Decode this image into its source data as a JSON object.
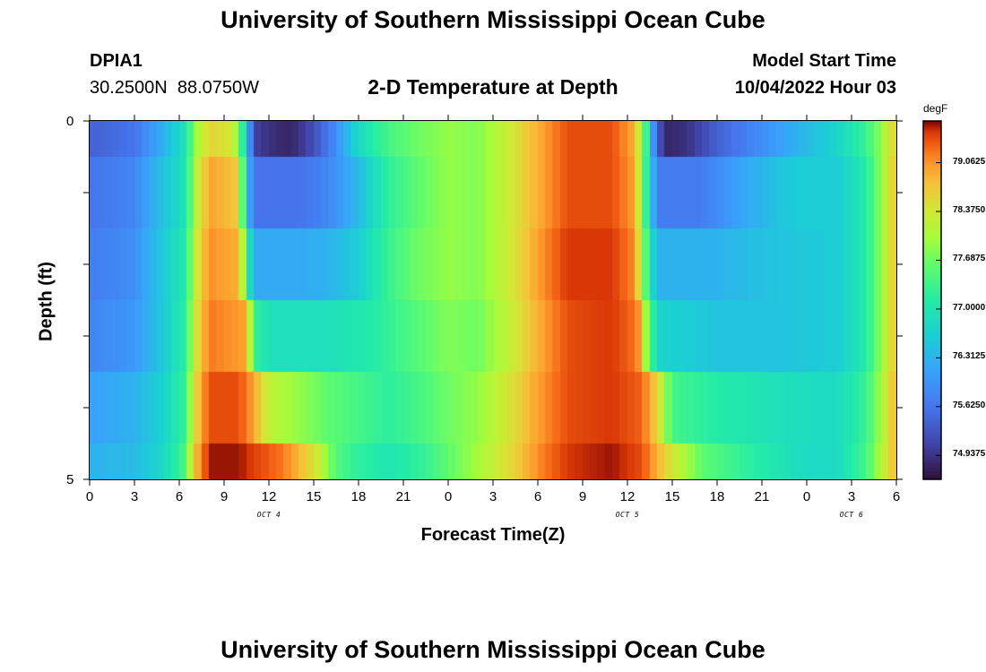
{
  "page": {
    "title": "University of Southern Mississippi Ocean Cube",
    "title_repeat": "University of Southern Mississippi Ocean Cube"
  },
  "station": {
    "id": "DPIA1",
    "coords": "30.2500N  88.0750W"
  },
  "model": {
    "label": "Model Start Time",
    "time": "10/04/2022 Hour 03"
  },
  "chart_data": {
    "type": "heatmap",
    "title": "2-D Temperature at Depth",
    "xlabel": "Forecast Time(Z)",
    "ylabel": "Depth (ft)",
    "units": "degF",
    "x_tick_labels": [
      "0",
      "3",
      "6",
      "9",
      "12",
      "15",
      "18",
      "21",
      "0",
      "3",
      "6",
      "9",
      "12",
      "15",
      "18",
      "21",
      "0",
      "3",
      "6"
    ],
    "day_labels": [
      {
        "label": "OCT 4",
        "hour": 12
      },
      {
        "label": "OCT 5",
        "hour": 36
      },
      {
        "label": "OCT 6",
        "hour": 51
      }
    ],
    "x_range_hours": [
      0,
      54
    ],
    "y_tick_labels": [
      "0",
      "5"
    ],
    "ylim": [
      0,
      5
    ],
    "depth_rows": [
      "0-0.5",
      "0.5-1.5",
      "1.5-2.5",
      "2.5-3.5",
      "3.5-4.5",
      "4.5-5"
    ],
    "colorbar": {
      "label": "degF",
      "ticks": [
        "79.0625",
        "78.3750",
        "77.6875",
        "77.0000",
        "76.3125",
        "75.6250",
        "74.9375"
      ],
      "range": [
        74.6,
        79.65
      ]
    },
    "temperature_keypoints_by_row": [
      [
        [
          0,
          75.4
        ],
        [
          3,
          75.6
        ],
        [
          5,
          76.3
        ],
        [
          6.5,
          77.0
        ],
        [
          7,
          77.8
        ],
        [
          8,
          78.6
        ],
        [
          9.5,
          78.4
        ],
        [
          10,
          77.8
        ],
        [
          10.5,
          76.6
        ],
        [
          11,
          75.1
        ],
        [
          12,
          74.9
        ],
        [
          13.5,
          74.8
        ],
        [
          15,
          75.2
        ],
        [
          16.5,
          75.9
        ],
        [
          18,
          76.8
        ],
        [
          20,
          77.4
        ],
        [
          22,
          77.7
        ],
        [
          24,
          77.9
        ],
        [
          26,
          77.8
        ],
        [
          28,
          78.3
        ],
        [
          30,
          78.9
        ],
        [
          32,
          79.4
        ],
        [
          35,
          79.4
        ],
        [
          36.5,
          78.9
        ],
        [
          37.2,
          77.5
        ],
        [
          37.8,
          75.8
        ],
        [
          38.5,
          74.8
        ],
        [
          40,
          74.9
        ],
        [
          42,
          75.4
        ],
        [
          45,
          75.9
        ],
        [
          48,
          76.4
        ],
        [
          50,
          76.7
        ],
        [
          52,
          77.3
        ],
        [
          53,
          77.9
        ],
        [
          54,
          78.7
        ]
      ],
      [
        [
          0,
          75.6
        ],
        [
          3,
          75.8
        ],
        [
          5,
          76.5
        ],
        [
          6.5,
          77.0
        ],
        [
          7,
          78.0
        ],
        [
          8,
          79.0
        ],
        [
          10,
          78.7
        ],
        [
          10.5,
          76.5
        ],
        [
          11,
          75.6
        ],
        [
          14,
          75.6
        ],
        [
          16,
          75.8
        ],
        [
          18,
          76.4
        ],
        [
          20,
          77.2
        ],
        [
          22,
          77.6
        ],
        [
          24,
          77.9
        ],
        [
          26,
          77.8
        ],
        [
          28,
          78.3
        ],
        [
          30,
          78.9
        ],
        [
          32,
          79.4
        ],
        [
          35,
          79.4
        ],
        [
          36.5,
          79.0
        ],
        [
          37.5,
          76.7
        ],
        [
          38,
          75.7
        ],
        [
          41,
          75.7
        ],
        [
          44,
          76.2
        ],
        [
          47,
          76.6
        ],
        [
          50,
          76.6
        ],
        [
          52,
          77.1
        ],
        [
          53,
          77.9
        ],
        [
          54,
          78.8
        ]
      ],
      [
        [
          0,
          75.7
        ],
        [
          3,
          75.9
        ],
        [
          5,
          76.6
        ],
        [
          6.5,
          77.1
        ],
        [
          7,
          78.2
        ],
        [
          8,
          79.1
        ],
        [
          10,
          78.9
        ],
        [
          10.7,
          76.9
        ],
        [
          11,
          76.2
        ],
        [
          14,
          76.2
        ],
        [
          16,
          76.3
        ],
        [
          18,
          76.6
        ],
        [
          20,
          77.3
        ],
        [
          22,
          77.7
        ],
        [
          24,
          77.9
        ],
        [
          26,
          77.8
        ],
        [
          28,
          78.3
        ],
        [
          30,
          79.0
        ],
        [
          32,
          79.5
        ],
        [
          35,
          79.5
        ],
        [
          36.5,
          79.1
        ],
        [
          37.5,
          77.0
        ],
        [
          38,
          76.3
        ],
        [
          42,
          76.3
        ],
        [
          46,
          76.5
        ],
        [
          50,
          76.6
        ],
        [
          52,
          77.1
        ],
        [
          53,
          77.9
        ],
        [
          54,
          78.8
        ]
      ],
      [
        [
          0,
          75.8
        ],
        [
          3,
          76.0
        ],
        [
          5,
          76.6
        ],
        [
          6.5,
          77.2
        ],
        [
          7,
          78.3
        ],
        [
          8,
          79.2
        ],
        [
          10.5,
          79.0
        ],
        [
          11,
          77.3
        ],
        [
          12,
          76.9
        ],
        [
          16,
          76.9
        ],
        [
          19,
          77.1
        ],
        [
          21,
          77.4
        ],
        [
          24,
          77.8
        ],
        [
          26,
          77.7
        ],
        [
          28,
          78.2
        ],
        [
          30,
          78.9
        ],
        [
          32,
          79.4
        ],
        [
          35,
          79.5
        ],
        [
          36.7,
          79.2
        ],
        [
          37.5,
          77.4
        ],
        [
          38.2,
          76.7
        ],
        [
          42,
          76.5
        ],
        [
          46,
          76.5
        ],
        [
          50,
          76.6
        ],
        [
          52,
          77.1
        ],
        [
          53,
          77.9
        ],
        [
          54,
          78.8
        ]
      ],
      [
        [
          0,
          76.1
        ],
        [
          3,
          76.3
        ],
        [
          5,
          76.7
        ],
        [
          6.5,
          77.3
        ],
        [
          7,
          78.5
        ],
        [
          8,
          79.4
        ],
        [
          10,
          79.4
        ],
        [
          11,
          79.0
        ],
        [
          12,
          78.2
        ],
        [
          14,
          77.9
        ],
        [
          16,
          77.6
        ],
        [
          18,
          77.4
        ],
        [
          20,
          77.2
        ],
        [
          22,
          77.4
        ],
        [
          24,
          77.7
        ],
        [
          26,
          77.9
        ],
        [
          28,
          78.4
        ],
        [
          30,
          79.0
        ],
        [
          32,
          79.4
        ],
        [
          35,
          79.5
        ],
        [
          37,
          79.3
        ],
        [
          38,
          78.6
        ],
        [
          39,
          77.4
        ],
        [
          42,
          77.1
        ],
        [
          46,
          76.9
        ],
        [
          50,
          76.8
        ],
        [
          52,
          77.3
        ],
        [
          53,
          78.0
        ],
        [
          54,
          78.9
        ]
      ],
      [
        [
          0,
          76.3
        ],
        [
          3,
          76.4
        ],
        [
          5,
          76.8
        ],
        [
          6.5,
          77.5
        ],
        [
          7,
          78.7
        ],
        [
          8,
          79.6
        ],
        [
          10,
          79.6
        ],
        [
          13,
          79.2
        ],
        [
          15,
          78.5
        ],
        [
          16.5,
          77.5
        ],
        [
          18,
          77.2
        ],
        [
          20,
          77.0
        ],
        [
          22,
          77.2
        ],
        [
          24,
          77.6
        ],
        [
          26,
          78.0
        ],
        [
          28,
          78.5
        ],
        [
          30,
          79.1
        ],
        [
          32,
          79.5
        ],
        [
          35,
          79.6
        ],
        [
          37,
          79.4
        ],
        [
          39,
          78.4
        ],
        [
          41,
          77.6
        ],
        [
          44,
          77.2
        ],
        [
          48,
          76.8
        ],
        [
          50,
          76.8
        ],
        [
          52,
          77.4
        ],
        [
          53,
          78.1
        ],
        [
          54,
          78.9
        ]
      ]
    ]
  }
}
